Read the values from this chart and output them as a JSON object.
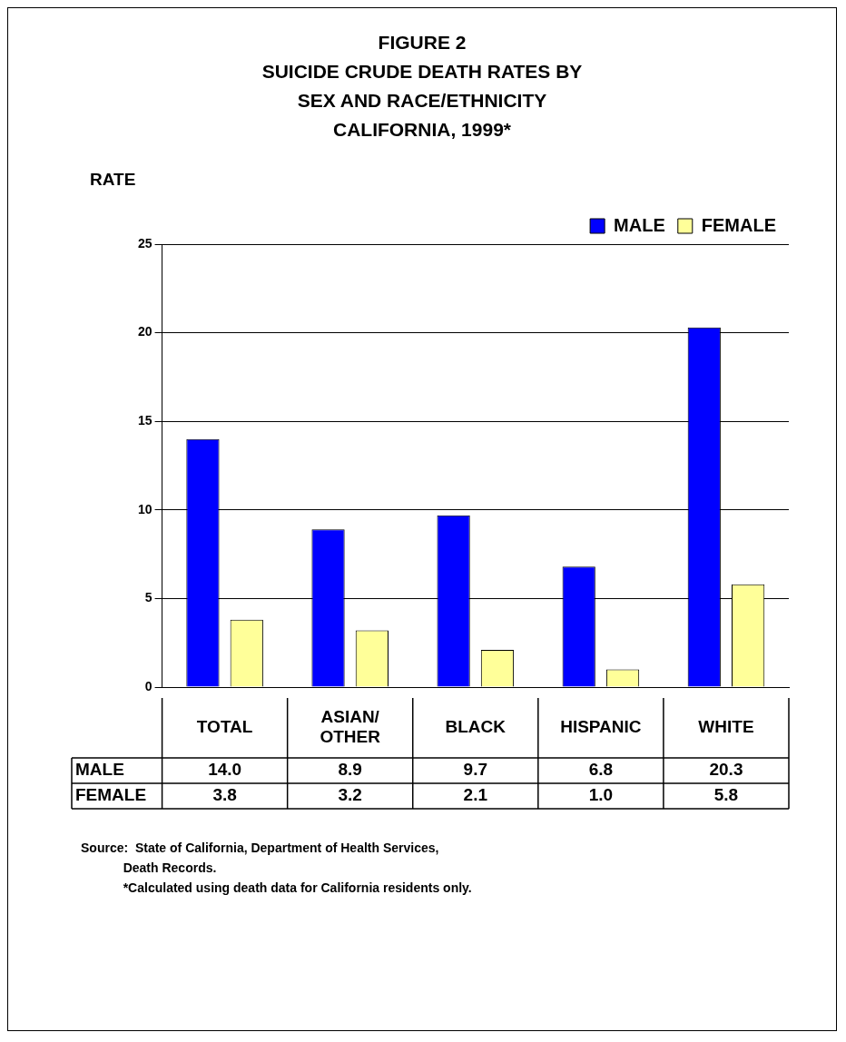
{
  "chart_data": {
    "type": "bar",
    "title": "FIGURE 2\nSUICIDE CRUDE DEATH RATES BY\nSEX AND RACE/ETHNICITY\nCALIFORNIA, 1999*",
    "ylabel": "RATE",
    "categories": [
      "TOTAL",
      "ASIAN/\nOTHER",
      "BLACK",
      "HISPANIC",
      "WHITE"
    ],
    "series": [
      {
        "name": "MALE",
        "color": "#0000ff",
        "values": [
          14.0,
          8.9,
          9.7,
          6.8,
          20.3
        ],
        "value_labels": [
          "14.0",
          "8.9",
          "9.7",
          "6.8",
          "20.3"
        ]
      },
      {
        "name": "FEMALE",
        "color": "#ffff99",
        "values": [
          3.8,
          3.2,
          2.1,
          1.0,
          5.8
        ],
        "value_labels": [
          "3.8",
          "3.2",
          "2.1",
          "1.0",
          "5.8"
        ]
      }
    ],
    "ylim": [
      0,
      25
    ],
    "yticks": [
      0,
      5,
      10,
      15,
      20,
      25
    ],
    "grid": "y",
    "legend": "top right",
    "annotations": [
      "Source:  State of California, Department of Health Services,\n            Death Records.\n            *Calculated using death data for California residents only."
    ]
  }
}
